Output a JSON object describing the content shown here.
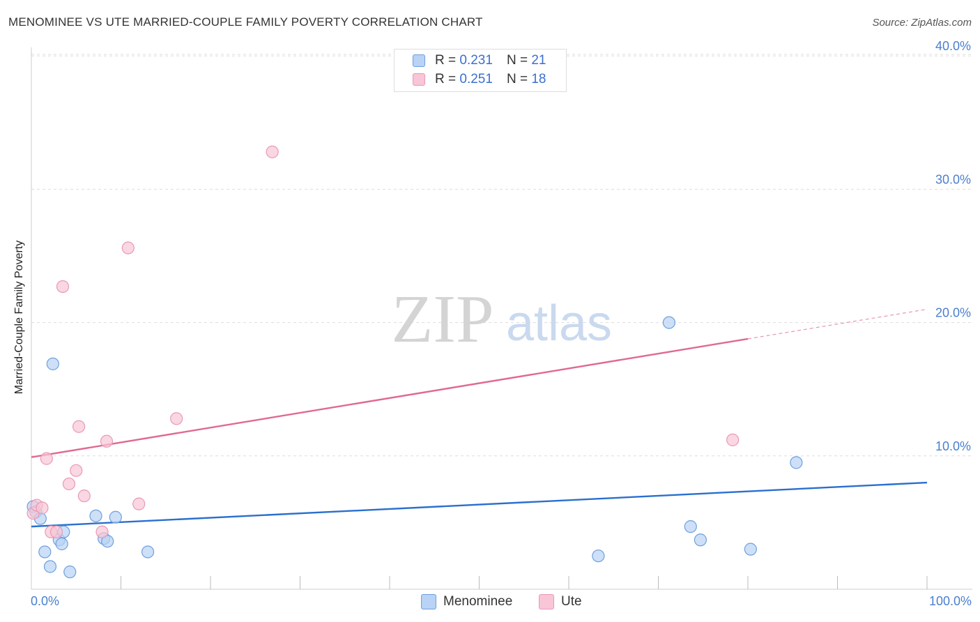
{
  "header": {
    "title": "MENOMINEE VS UTE MARRIED-COUPLE FAMILY POVERTY CORRELATION CHART",
    "source": "Source: ZipAtlas.com"
  },
  "watermark": {
    "zip": "ZIP",
    "atlas": "atlas"
  },
  "legend_top": {
    "rows": [
      {
        "r_label": "R =",
        "r_value": "0.231",
        "n_label": "N =",
        "n_value": "21"
      },
      {
        "r_label": "R =",
        "r_value": "0.251",
        "n_label": "N =",
        "n_value": "18"
      }
    ]
  },
  "legend_bottom": {
    "series_a": "Menominee",
    "series_b": "Ute"
  },
  "x_axis_labels": {
    "min": "0.0%",
    "max": "100.0%"
  },
  "colors": {
    "menominee_fill": "#b8d3f5",
    "menominee_stroke": "#6f9fdc",
    "menominee_line": "#2a6fcf",
    "ute_fill": "#f8c6d6",
    "ute_stroke": "#e89ab4",
    "ute_line": "#e0698f",
    "tick_text": "#4a7fd0",
    "grid": "#dddddd"
  },
  "chart_data": {
    "type": "scatter",
    "title": "MENOMINEE VS UTE MARRIED-COUPLE FAMILY POVERTY CORRELATION CHART",
    "xlabel": "",
    "ylabel": "Married-Couple Family Poverty",
    "xlim": [
      0,
      100
    ],
    "ylim": [
      0,
      42
    ],
    "y_ticks": [
      10,
      20,
      30,
      40
    ],
    "y_tick_labels": [
      "10.0%",
      "20.0%",
      "30.0%",
      "40.0%"
    ],
    "x_tick_labels": [
      "0.0%",
      "100.0%"
    ],
    "legend_position": "top-center",
    "grid": true,
    "series": [
      {
        "name": "Menominee",
        "R": 0.231,
        "N": 21,
        "points": [
          {
            "x": 0.2,
            "y": 6.2
          },
          {
            "x": 0.5,
            "y": 5.8
          },
          {
            "x": 1.0,
            "y": 5.3
          },
          {
            "x": 1.5,
            "y": 2.8
          },
          {
            "x": 2.1,
            "y": 1.7
          },
          {
            "x": 2.4,
            "y": 16.9
          },
          {
            "x": 3.1,
            "y": 3.7
          },
          {
            "x": 3.4,
            "y": 3.4
          },
          {
            "x": 3.6,
            "y": 4.3
          },
          {
            "x": 4.3,
            "y": 1.3
          },
          {
            "x": 7.2,
            "y": 5.5
          },
          {
            "x": 8.1,
            "y": 3.8
          },
          {
            "x": 8.5,
            "y": 3.6
          },
          {
            "x": 9.4,
            "y": 5.4
          },
          {
            "x": 13.0,
            "y": 2.8
          },
          {
            "x": 63.3,
            "y": 2.5
          },
          {
            "x": 71.2,
            "y": 20.0
          },
          {
            "x": 73.6,
            "y": 4.7
          },
          {
            "x": 74.7,
            "y": 3.7
          },
          {
            "x": 80.3,
            "y": 3.0
          },
          {
            "x": 85.4,
            "y": 9.5
          }
        ],
        "trend": {
          "x0": 0,
          "y0": 4.7,
          "x1": 100,
          "y1": 8.0,
          "dashed_from": null
        }
      },
      {
        "name": "Ute",
        "R": 0.251,
        "N": 18,
        "points": [
          {
            "x": 0.2,
            "y": 5.7
          },
          {
            "x": 0.6,
            "y": 6.3
          },
          {
            "x": 1.2,
            "y": 6.1
          },
          {
            "x": 1.7,
            "y": 9.8
          },
          {
            "x": 2.2,
            "y": 4.3
          },
          {
            "x": 2.8,
            "y": 4.3
          },
          {
            "x": 3.5,
            "y": 22.7
          },
          {
            "x": 4.2,
            "y": 7.9
          },
          {
            "x": 5.0,
            "y": 8.9
          },
          {
            "x": 5.3,
            "y": 12.2
          },
          {
            "x": 5.9,
            "y": 7.0
          },
          {
            "x": 7.9,
            "y": 4.3
          },
          {
            "x": 8.4,
            "y": 11.1
          },
          {
            "x": 10.8,
            "y": 25.6
          },
          {
            "x": 12.0,
            "y": 6.4
          },
          {
            "x": 16.2,
            "y": 12.8
          },
          {
            "x": 26.9,
            "y": 32.8
          },
          {
            "x": 78.3,
            "y": 11.2
          }
        ],
        "trend": {
          "x0": 0,
          "y0": 9.9,
          "x1": 100,
          "y1": 21.0,
          "dashed_from": 80
        }
      }
    ]
  }
}
